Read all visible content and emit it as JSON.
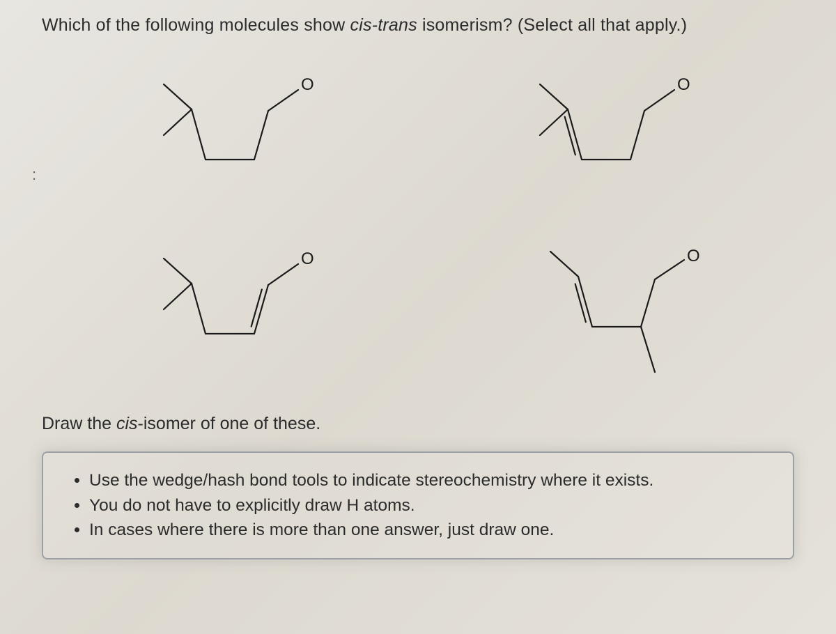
{
  "question": {
    "prefix": "Which of the following molecules show ",
    "ital": "cis-trans",
    "suffix": " isomerism? (Select all that apply.)"
  },
  "subprompt": {
    "prefix": "Draw the ",
    "ital": "cis",
    "suffix": "-isomer of one of these."
  },
  "hints": [
    "Use the wedge/hash bond tools to indicate stereochemistry where it exists.",
    "You do not have to explicitly draw H atoms.",
    "In cases where there is more than one answer, just draw one."
  ],
  "oxygen_label": "O",
  "mol_stroke": "#1a1a1a",
  "colon": ":"
}
